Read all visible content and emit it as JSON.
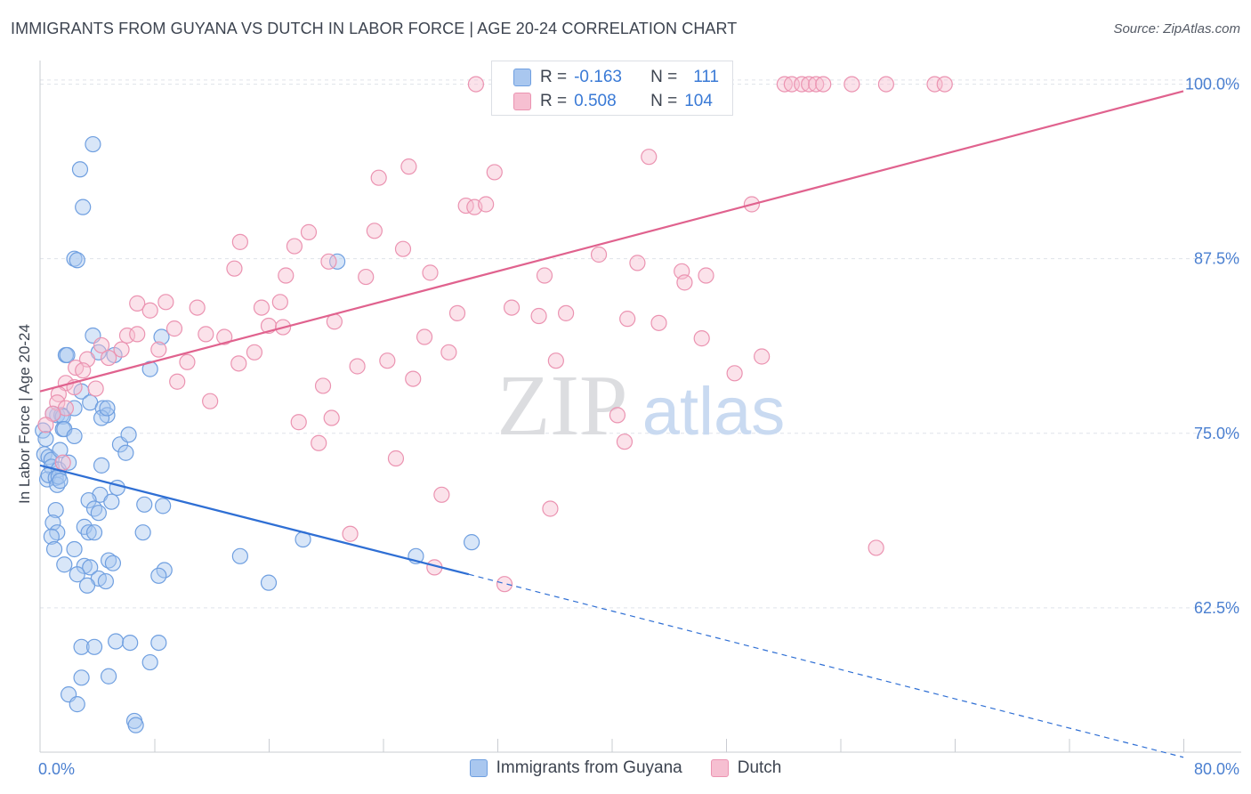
{
  "header": {
    "title": "IMMIGRANTS FROM GUYANA VS DUTCH IN LABOR FORCE | AGE 20-24 CORRELATION CHART",
    "source": "Source: ZipAtlas.com"
  },
  "watermark": {
    "zip": "ZIP",
    "atlas": "atlas"
  },
  "legend": {
    "r_label": "R =",
    "n_label": "N =",
    "series": [
      {
        "name": "Immigrants from Guyana",
        "r": "-0.163",
        "n": "111"
      },
      {
        "name": "Dutch",
        "r": "0.508",
        "n": "104"
      }
    ]
  },
  "colors": {
    "blue_fill": "#a9c7ef",
    "blue_stroke": "#6f9fe0",
    "blue_line": "#2f6fd4",
    "pink_fill": "#f6bfd1",
    "pink_stroke": "#eb93b1",
    "pink_line": "#e0628e",
    "tick": "#4a7fd0",
    "grid": "#dfe3ea"
  },
  "chart_data": {
    "type": "scatter",
    "title": "IMMIGRANTS FROM GUYANA VS DUTCH IN LABOR FORCE | AGE 20-24 CORRELATION CHART",
    "xlabel": "",
    "ylabel": "In Labor Force | Age 20-24",
    "xlim": [
      0,
      80
    ],
    "ylim": [
      52,
      101
    ],
    "x_tick_labels": [
      {
        "value": 0,
        "label": "0.0%"
      },
      {
        "value": 80,
        "label": "80.0%"
      }
    ],
    "y_ticks": [
      {
        "value": 62.5,
        "label": "62.5%"
      },
      {
        "value": 75.0,
        "label": "75.0%"
      },
      {
        "value": 87.5,
        "label": "87.5%"
      },
      {
        "value": 100.0,
        "label": "100.0%"
      }
    ],
    "x_minor_ticks": [
      8,
      16,
      24,
      32,
      40,
      48,
      56,
      64,
      72,
      80
    ],
    "series": [
      {
        "name": "Immigrants from Guyana",
        "color": "blue",
        "trend": {
          "x0": 0,
          "y0": 72.7,
          "x1": 30,
          "y1": 64.9,
          "dash_to_x": 80,
          "dash_to_y": 51.8
        },
        "points": [
          [
            3.7,
            95.7
          ],
          [
            2.8,
            93.9
          ],
          [
            3.0,
            91.2
          ],
          [
            2.4,
            87.5
          ],
          [
            2.6,
            87.4
          ],
          [
            20.8,
            87.3
          ],
          [
            1.8,
            80.6
          ],
          [
            1.9,
            80.6
          ],
          [
            3.7,
            82.0
          ],
          [
            4.1,
            80.8
          ],
          [
            5.2,
            80.6
          ],
          [
            8.5,
            81.9
          ],
          [
            7.7,
            79.6
          ],
          [
            2.9,
            78.0
          ],
          [
            1.2,
            76.3
          ],
          [
            1.5,
            76.3
          ],
          [
            1.6,
            76.2
          ],
          [
            0.9,
            76.4
          ],
          [
            2.4,
            76.8
          ],
          [
            3.5,
            77.2
          ],
          [
            4.4,
            76.8
          ],
          [
            4.7,
            76.3
          ],
          [
            4.3,
            76.1
          ],
          [
            4.7,
            76.8
          ],
          [
            0.2,
            75.2
          ],
          [
            0.4,
            74.6
          ],
          [
            1.6,
            75.3
          ],
          [
            1.7,
            75.3
          ],
          [
            2.4,
            74.8
          ],
          [
            5.6,
            74.2
          ],
          [
            6.2,
            74.9
          ],
          [
            6.0,
            73.6
          ],
          [
            0.3,
            73.5
          ],
          [
            0.6,
            73.3
          ],
          [
            0.8,
            73.1
          ],
          [
            1.4,
            73.8
          ],
          [
            0.8,
            72.6
          ],
          [
            1.3,
            72.4
          ],
          [
            2.0,
            72.9
          ],
          [
            4.3,
            72.7
          ],
          [
            0.5,
            71.7
          ],
          [
            0.6,
            72.0
          ],
          [
            1.1,
            71.8
          ],
          [
            1.2,
            71.3
          ],
          [
            1.3,
            71.9
          ],
          [
            1.4,
            71.6
          ],
          [
            5.4,
            71.1
          ],
          [
            4.2,
            70.6
          ],
          [
            3.4,
            70.2
          ],
          [
            5.0,
            70.1
          ],
          [
            7.3,
            69.9
          ],
          [
            8.6,
            69.8
          ],
          [
            3.8,
            69.6
          ],
          [
            1.1,
            69.5
          ],
          [
            4.1,
            69.3
          ],
          [
            0.9,
            68.6
          ],
          [
            3.1,
            68.3
          ],
          [
            3.4,
            67.9
          ],
          [
            3.8,
            67.9
          ],
          [
            7.2,
            67.9
          ],
          [
            1.2,
            67.9
          ],
          [
            0.8,
            67.6
          ],
          [
            18.4,
            67.4
          ],
          [
            30.2,
            67.2
          ],
          [
            1.0,
            66.7
          ],
          [
            2.4,
            66.7
          ],
          [
            14.0,
            66.2
          ],
          [
            26.3,
            66.2
          ],
          [
            4.8,
            65.9
          ],
          [
            5.1,
            65.7
          ],
          [
            1.7,
            65.6
          ],
          [
            3.1,
            65.5
          ],
          [
            3.5,
            65.4
          ],
          [
            8.7,
            65.2
          ],
          [
            8.3,
            64.8
          ],
          [
            2.6,
            64.9
          ],
          [
            4.1,
            64.6
          ],
          [
            4.6,
            64.4
          ],
          [
            3.3,
            64.1
          ],
          [
            16.0,
            64.3
          ],
          [
            2.9,
            59.7
          ],
          [
            3.8,
            59.7
          ],
          [
            5.3,
            60.1
          ],
          [
            6.3,
            60.0
          ],
          [
            8.3,
            60.0
          ],
          [
            7.7,
            58.6
          ],
          [
            2.9,
            57.5
          ],
          [
            4.8,
            57.6
          ],
          [
            2.0,
            56.3
          ],
          [
            2.6,
            55.6
          ],
          [
            6.6,
            54.4
          ],
          [
            6.7,
            54.1
          ]
        ]
      },
      {
        "name": "Dutch",
        "color": "pink",
        "trend": {
          "x0": 0,
          "y0": 78.0,
          "x1": 80,
          "y1": 99.5
        },
        "points": [
          [
            30.5,
            100.0
          ],
          [
            35.2,
            100.0
          ],
          [
            38.3,
            100.0
          ],
          [
            41.3,
            100.0
          ],
          [
            47.8,
            100.0
          ],
          [
            52.1,
            100.0
          ],
          [
            52.6,
            100.0
          ],
          [
            53.3,
            100.0
          ],
          [
            53.8,
            100.0
          ],
          [
            54.3,
            100.0
          ],
          [
            54.8,
            100.0
          ],
          [
            56.8,
            100.0
          ],
          [
            59.2,
            100.0
          ],
          [
            62.6,
            100.0
          ],
          [
            63.3,
            100.0
          ],
          [
            42.6,
            94.8
          ],
          [
            25.8,
            94.1
          ],
          [
            23.7,
            93.3
          ],
          [
            31.8,
            93.7
          ],
          [
            29.8,
            91.3
          ],
          [
            30.4,
            91.2
          ],
          [
            31.2,
            91.4
          ],
          [
            49.8,
            91.4
          ],
          [
            23.4,
            89.5
          ],
          [
            18.8,
            89.4
          ],
          [
            17.8,
            88.4
          ],
          [
            25.4,
            88.2
          ],
          [
            14.0,
            88.7
          ],
          [
            39.1,
            87.8
          ],
          [
            41.8,
            87.2
          ],
          [
            20.2,
            87.3
          ],
          [
            13.6,
            86.8
          ],
          [
            17.2,
            86.3
          ],
          [
            22.8,
            86.2
          ],
          [
            27.3,
            86.5
          ],
          [
            35.3,
            86.3
          ],
          [
            44.9,
            86.6
          ],
          [
            46.6,
            86.3
          ],
          [
            45.1,
            85.8
          ],
          [
            6.8,
            84.3
          ],
          [
            8.8,
            84.4
          ],
          [
            11.0,
            84.0
          ],
          [
            15.5,
            84.0
          ],
          [
            16.8,
            84.4
          ],
          [
            7.7,
            83.8
          ],
          [
            29.2,
            83.6
          ],
          [
            33.0,
            84.0
          ],
          [
            34.9,
            83.4
          ],
          [
            36.8,
            83.6
          ],
          [
            41.1,
            83.2
          ],
          [
            43.3,
            82.9
          ],
          [
            20.6,
            83.0
          ],
          [
            16.0,
            82.7
          ],
          [
            17.0,
            82.6
          ],
          [
            9.4,
            82.5
          ],
          [
            6.1,
            82.0
          ],
          [
            6.8,
            82.1
          ],
          [
            11.6,
            82.1
          ],
          [
            12.9,
            81.9
          ],
          [
            26.9,
            81.9
          ],
          [
            46.3,
            81.8
          ],
          [
            4.3,
            81.3
          ],
          [
            5.7,
            81.0
          ],
          [
            8.3,
            81.0
          ],
          [
            15.0,
            80.8
          ],
          [
            28.6,
            80.8
          ],
          [
            50.5,
            80.5
          ],
          [
            3.3,
            80.3
          ],
          [
            4.8,
            80.4
          ],
          [
            10.3,
            80.1
          ],
          [
            13.9,
            80.0
          ],
          [
            22.2,
            79.8
          ],
          [
            24.3,
            80.2
          ],
          [
            36.1,
            80.2
          ],
          [
            2.5,
            79.7
          ],
          [
            3.0,
            79.5
          ],
          [
            48.6,
            79.3
          ],
          [
            1.8,
            78.6
          ],
          [
            2.4,
            78.3
          ],
          [
            3.9,
            78.2
          ],
          [
            9.6,
            78.7
          ],
          [
            19.8,
            78.4
          ],
          [
            26.1,
            78.9
          ],
          [
            1.3,
            77.8
          ],
          [
            1.2,
            77.2
          ],
          [
            11.9,
            77.3
          ],
          [
            1.8,
            76.8
          ],
          [
            0.9,
            76.4
          ],
          [
            40.4,
            76.3
          ],
          [
            18.1,
            75.8
          ],
          [
            20.4,
            76.1
          ],
          [
            0.4,
            75.6
          ],
          [
            19.5,
            74.3
          ],
          [
            40.9,
            74.4
          ],
          [
            24.9,
            73.2
          ],
          [
            1.6,
            72.9
          ],
          [
            28.1,
            70.6
          ],
          [
            35.7,
            69.6
          ],
          [
            21.7,
            67.8
          ],
          [
            58.5,
            66.8
          ],
          [
            27.6,
            65.4
          ],
          [
            32.5,
            64.2
          ]
        ]
      }
    ]
  }
}
